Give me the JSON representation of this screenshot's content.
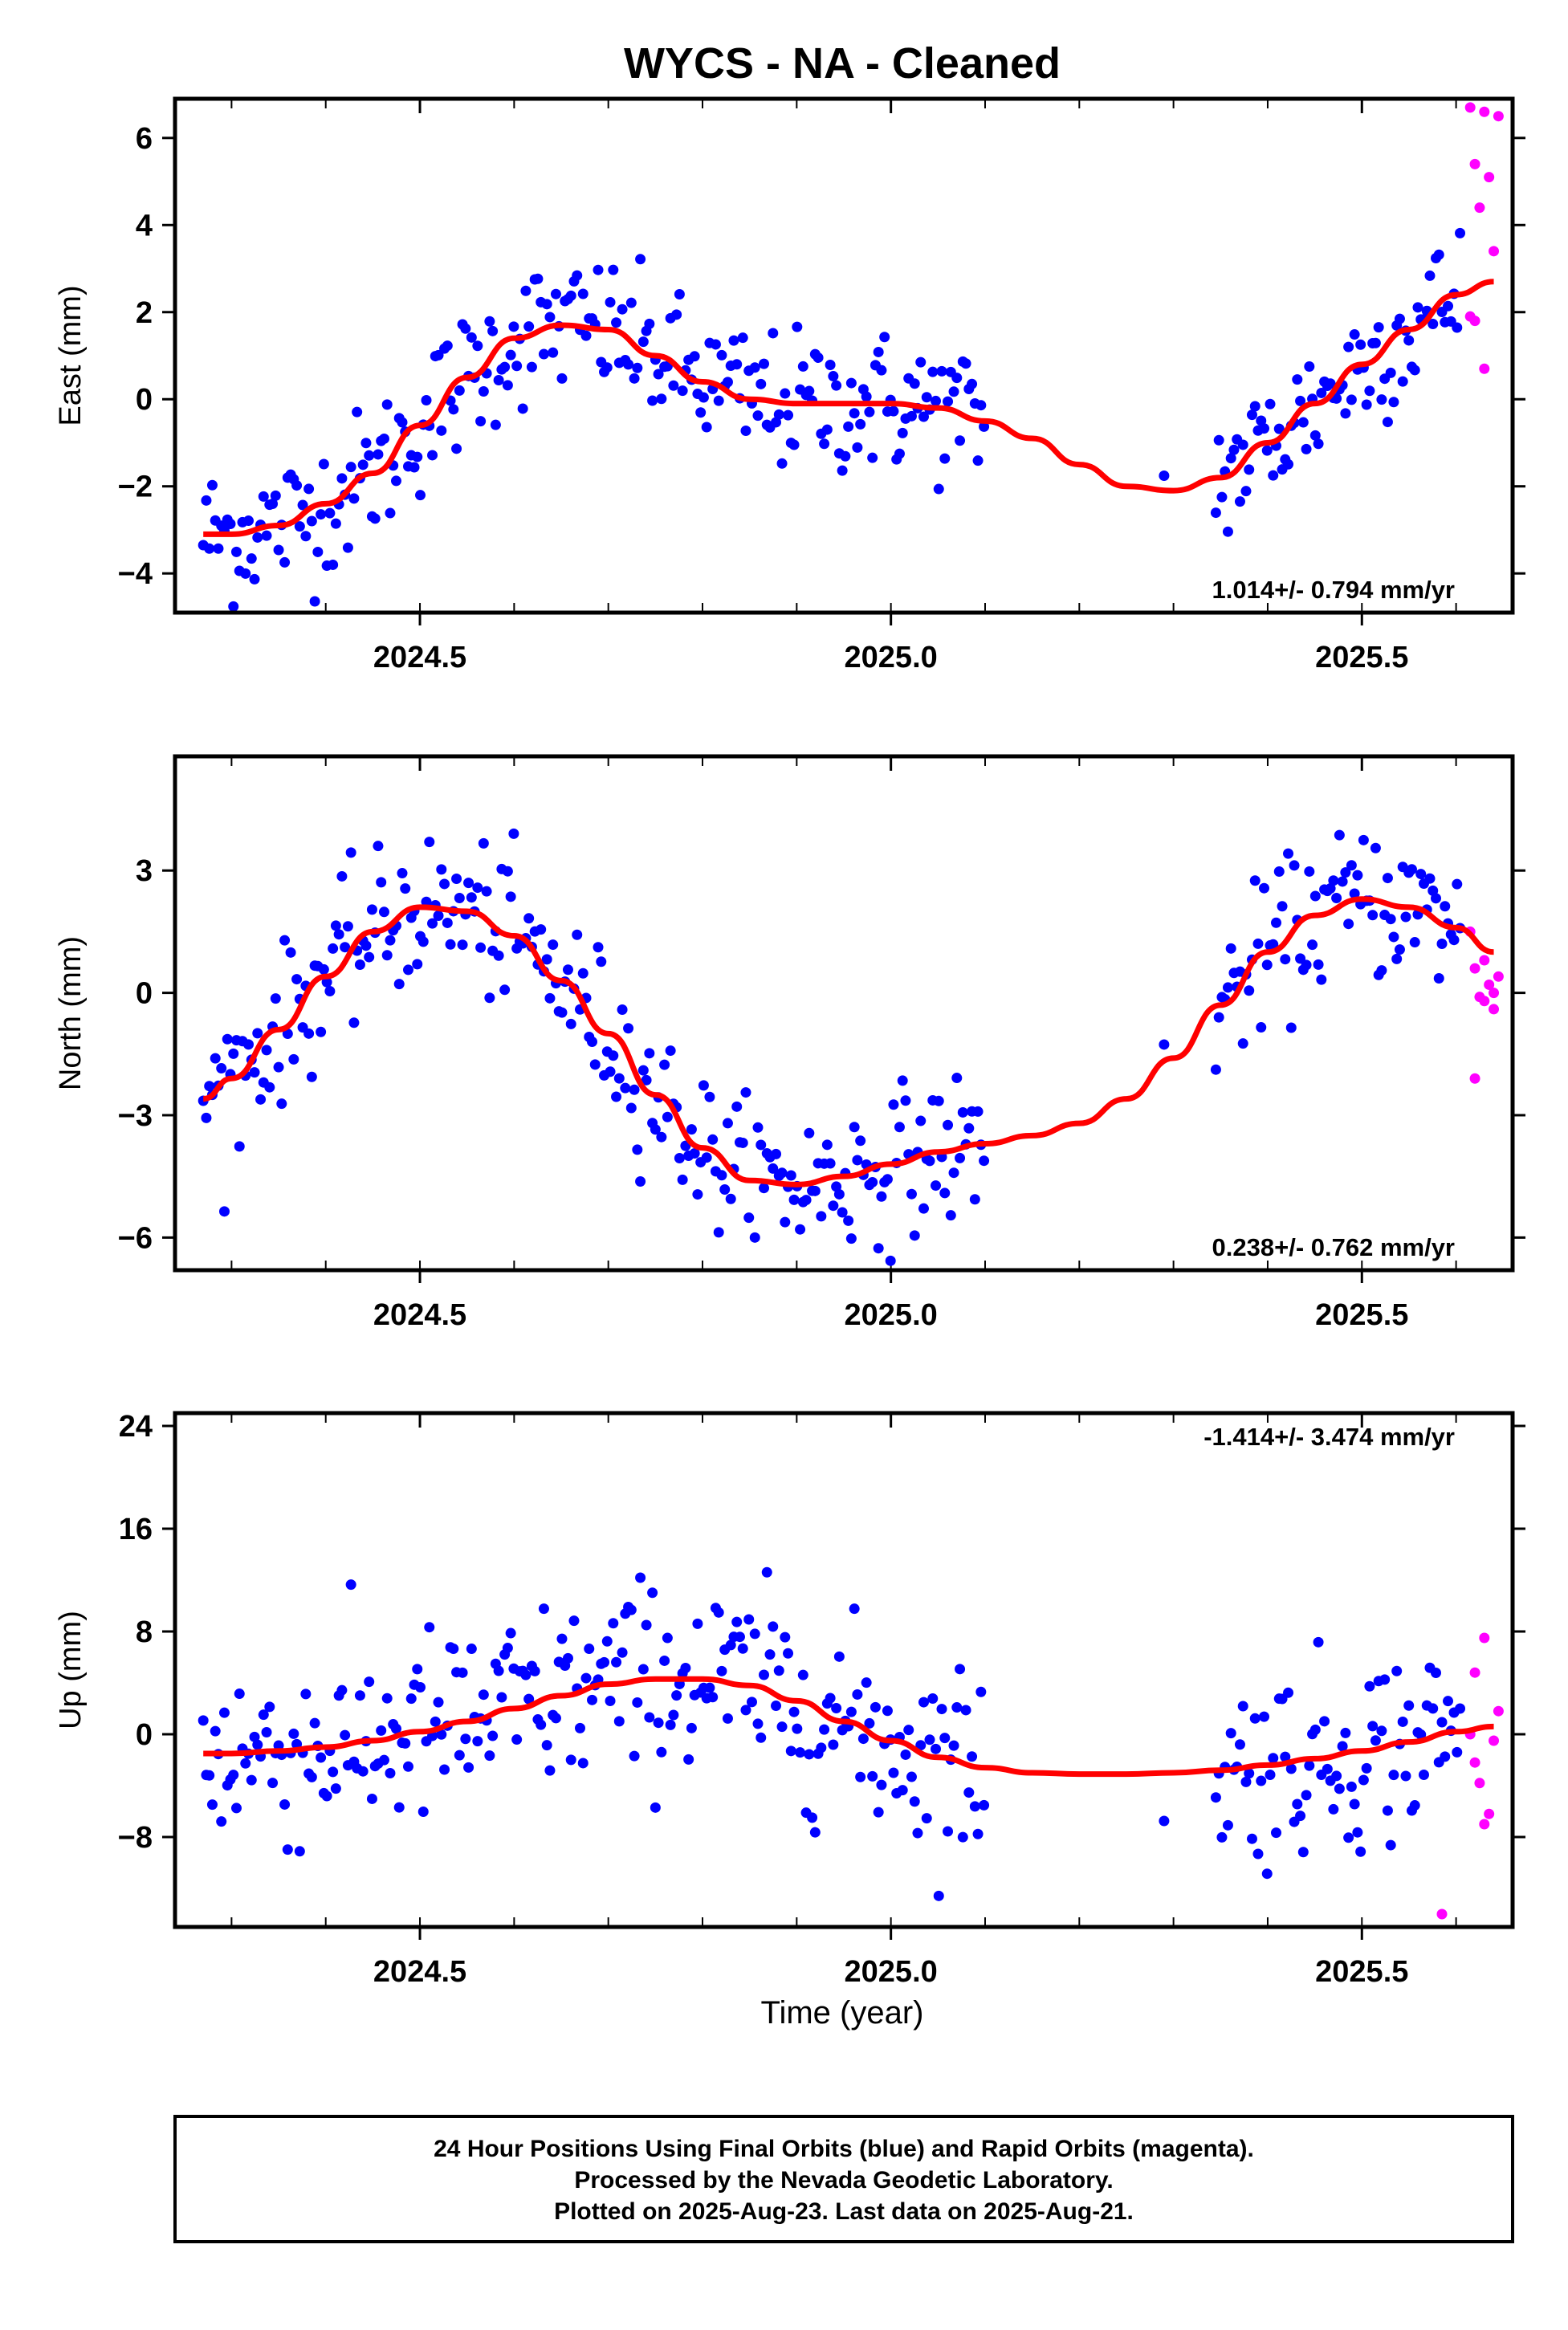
{
  "title": "WYCS  - NA - Cleaned",
  "x_axis_label": "Time (year)",
  "footer": {
    "line1": "24 Hour Positions Using Final Orbits (blue) and Rapid Orbits (magenta).",
    "line2": "Processed by the Nevada Geodetic Laboratory.",
    "line3": "Plotted on 2025-Aug-23. Last data on 2025-Aug-21."
  },
  "colors": {
    "final": "#0000ff",
    "rapid": "#ff00ff",
    "model": "#ff0000",
    "frame": "#000000"
  },
  "chart_data": [
    {
      "type": "scatter",
      "component": "east",
      "ylabel": "East (mm)",
      "rate_label": "1.014+/- 0.794 mm/yr",
      "xlim": [
        2024.24,
        2025.66
      ],
      "ylim": [
        -4.9,
        6.9
      ],
      "xticks": [
        2024.5,
        2025.0,
        2025.5
      ],
      "xtick_labels": [
        "2024.5",
        "2025.0",
        "2025.5"
      ],
      "yticks": [
        -4,
        -2,
        0,
        2,
        4,
        6
      ],
      "ytick_labels": [
        "−4",
        "−2",
        "0",
        "2",
        "4",
        "6"
      ],
      "model_curve": {
        "x": [
          2024.27,
          2024.3,
          2024.35,
          2024.4,
          2024.45,
          2024.5,
          2024.55,
          2024.6,
          2024.65,
          2024.7,
          2024.75,
          2024.8,
          2024.85,
          2024.9,
          2024.95,
          2025.0,
          2025.05,
          2025.1,
          2025.15,
          2025.2,
          2025.25,
          2025.3,
          2025.35,
          2025.4,
          2025.45,
          2025.5,
          2025.55,
          2025.6,
          2025.64
        ],
        "y": [
          -3.1,
          -3.1,
          -2.9,
          -2.4,
          -1.7,
          -0.6,
          0.5,
          1.4,
          1.7,
          1.6,
          1.0,
          0.4,
          0.0,
          -0.1,
          -0.1,
          -0.1,
          -0.2,
          -0.5,
          -0.9,
          -1.5,
          -2.0,
          -2.1,
          -1.8,
          -1.0,
          -0.1,
          0.8,
          1.6,
          2.4,
          2.7
        ]
      },
      "trend": {
        "amp1": 1.85,
        "ph1": 3.6,
        "amp2": 0.6,
        "ph2": 1.2,
        "noise": 0.9,
        "jump": 6.0
      },
      "rapid_points": {
        "x": [
          2025.615,
          2025.62,
          2025.625,
          2025.63,
          2025.635,
          2025.64,
          2025.645,
          2025.615,
          2025.62,
          2025.63
        ],
        "y": [
          6.7,
          5.4,
          4.4,
          6.6,
          5.1,
          3.4,
          6.5,
          1.9,
          1.8,
          0.7
        ]
      },
      "rate_position": "bottom-right"
    },
    {
      "type": "scatter",
      "component": "north",
      "ylabel": "North (mm)",
      "rate_label": "0.238+/- 0.762 mm/yr",
      "xlim": [
        2024.24,
        2025.66
      ],
      "ylim": [
        -6.8,
        5.8
      ],
      "xticks": [
        2024.5,
        2025.0,
        2025.5
      ],
      "xtick_labels": [
        "2024.5",
        "2025.0",
        "2025.5"
      ],
      "yticks": [
        -6,
        -3,
        0,
        3
      ],
      "ytick_labels": [
        "−6",
        "−3",
        "0",
        "3"
      ],
      "model_curve": {
        "x": [
          2024.27,
          2024.3,
          2024.35,
          2024.4,
          2024.45,
          2024.5,
          2024.55,
          2024.6,
          2024.65,
          2024.7,
          2024.75,
          2024.8,
          2024.85,
          2024.9,
          2024.95,
          2025.0,
          2025.05,
          2025.1,
          2025.15,
          2025.2,
          2025.25,
          2025.3,
          2025.35,
          2025.4,
          2025.45,
          2025.5,
          2025.55,
          2025.6,
          2025.64
        ],
        "y": [
          -2.6,
          -2.1,
          -0.9,
          0.4,
          1.5,
          2.1,
          2.0,
          1.4,
          0.3,
          -1.0,
          -2.5,
          -3.8,
          -4.6,
          -4.7,
          -4.5,
          -4.2,
          -3.9,
          -3.7,
          -3.5,
          -3.2,
          -2.6,
          -1.6,
          -0.3,
          1.0,
          1.9,
          2.3,
          2.1,
          1.6,
          1.0
        ]
      },
      "trend": {
        "noise": 1.0
      },
      "rapid_points": {
        "x": [
          2025.615,
          2025.62,
          2025.625,
          2025.63,
          2025.635,
          2025.64,
          2025.645,
          2025.62,
          2025.63,
          2025.64
        ],
        "y": [
          1.5,
          0.6,
          -0.1,
          0.8,
          0.2,
          -0.4,
          0.4,
          -2.1,
          -0.2,
          0.0
        ]
      },
      "rate_position": "bottom-right"
    },
    {
      "type": "scatter",
      "component": "up",
      "ylabel": "Up (mm)",
      "rate_label": "-1.414+/- 3.474 mm/yr",
      "xlim": [
        2024.24,
        2025.66
      ],
      "ylim": [
        -15,
        25
      ],
      "xticks": [
        2024.5,
        2025.0,
        2025.5
      ],
      "xtick_labels": [
        "2024.5",
        "2025.0",
        "2025.5"
      ],
      "yticks": [
        -8,
        0,
        8,
        16,
        24
      ],
      "ytick_labels": [
        "−8",
        "0",
        "8",
        "16",
        "24"
      ],
      "model_curve": {
        "x": [
          2024.27,
          2024.3,
          2024.35,
          2024.4,
          2024.45,
          2024.5,
          2024.55,
          2024.6,
          2024.65,
          2024.7,
          2024.75,
          2024.8,
          2024.85,
          2024.9,
          2024.95,
          2025.0,
          2025.05,
          2025.1,
          2025.15,
          2025.2,
          2025.25,
          2025.3,
          2025.35,
          2025.4,
          2025.45,
          2025.5,
          2025.55,
          2025.6,
          2025.64
        ],
        "y": [
          -1.5,
          -1.5,
          -1.3,
          -1.0,
          -0.5,
          0.2,
          1.0,
          2.0,
          3.0,
          3.9,
          4.3,
          4.3,
          3.8,
          2.6,
          1.0,
          -0.5,
          -1.8,
          -2.6,
          -3.0,
          -3.1,
          -3.1,
          -3.0,
          -2.8,
          -2.4,
          -1.9,
          -1.3,
          -0.6,
          0.2,
          0.6
        ]
      },
      "trend": {
        "noise": 4.2
      },
      "rapid_points": {
        "x": [
          2025.585,
          2025.615,
          2025.62,
          2025.625,
          2025.63,
          2025.635,
          2025.64,
          2025.645,
          2025.62,
          2025.63
        ],
        "y": [
          -14.0,
          0.0,
          4.8,
          -3.8,
          7.5,
          -6.2,
          -0.5,
          1.8,
          -2.2,
          -7.0
        ]
      },
      "rate_position": "top-right"
    }
  ]
}
